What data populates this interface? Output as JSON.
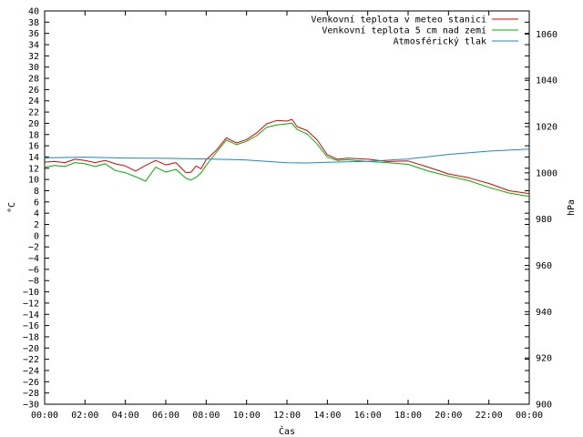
{
  "chart_data": {
    "type": "line",
    "xlabel": "Čas",
    "ylabel_left": "°C",
    "ylabel_right": "hPa",
    "x_ticks": [
      "00:00",
      "02:00",
      "04:00",
      "06:00",
      "08:00",
      "10:00",
      "12:00",
      "14:00",
      "16:00",
      "18:00",
      "20:00",
      "22:00",
      "00:00"
    ],
    "x_hours_range": [
      0,
      24
    ],
    "ylim_left": [
      -30,
      40
    ],
    "y_left_step": 2,
    "ylim_right": [
      900,
      1070
    ],
    "y_right_ticks": [
      900,
      920,
      940,
      960,
      980,
      1000,
      1020,
      1040,
      1060
    ],
    "grid": false,
    "legend_position": "top-right",
    "series": [
      {
        "name": "Venkovní teplota v meteo stanici",
        "color": "#e00000",
        "axis": "left",
        "x": [
          0,
          0.5,
          1,
          1.5,
          2,
          2.5,
          3,
          3.5,
          4,
          4.5,
          5,
          5.5,
          6,
          6.5,
          7,
          7.25,
          7.5,
          7.75,
          8,
          8.5,
          9,
          9.5,
          10,
          10.5,
          11,
          11.5,
          12,
          12.25,
          12.5,
          13,
          13.5,
          14,
          14.5,
          15,
          16,
          17,
          18,
          19,
          20,
          21,
          22,
          23,
          24
        ],
        "values": [
          13.1,
          13.2,
          13.0,
          13.6,
          13.4,
          13.0,
          13.4,
          12.8,
          12.4,
          11.5,
          12.5,
          13.4,
          12.6,
          13.0,
          11.2,
          11.3,
          12.4,
          11.9,
          13.5,
          15.2,
          17.4,
          16.5,
          17.1,
          18.3,
          19.9,
          20.5,
          20.4,
          20.7,
          19.4,
          18.7,
          17.0,
          14.4,
          13.6,
          13.8,
          13.6,
          13.2,
          13.3,
          12.2,
          11.0,
          10.3,
          9.3,
          8.0,
          7.5
        ]
      },
      {
        "name": "Venkovní teplota 5 cm nad zemí",
        "color": "#00b000",
        "axis": "left",
        "x": [
          0,
          0.5,
          1,
          1.5,
          2,
          2.5,
          3,
          3.5,
          4,
          4.5,
          5,
          5.5,
          6,
          6.5,
          7,
          7.25,
          7.5,
          7.75,
          8,
          8.5,
          9,
          9.5,
          10,
          10.5,
          11,
          11.5,
          12,
          12.25,
          12.5,
          13,
          13.5,
          14,
          14.5,
          15,
          16,
          17,
          18,
          19,
          20,
          21,
          22,
          23,
          24
        ],
        "values": [
          12.2,
          12.5,
          12.3,
          13.0,
          12.8,
          12.3,
          12.8,
          11.6,
          11.2,
          10.5,
          9.7,
          12.2,
          11.3,
          11.8,
          10.2,
          9.9,
          10.4,
          11.2,
          12.5,
          14.8,
          17.0,
          16.2,
          16.8,
          17.8,
          19.3,
          19.7,
          19.9,
          20.0,
          18.9,
          18.1,
          16.3,
          14.0,
          13.4,
          13.5,
          13.2,
          13.0,
          12.7,
          11.5,
          10.6,
          9.8,
          8.6,
          7.6,
          7.0
        ]
      },
      {
        "name": "Atmosférický tlak",
        "color": "#1a8ac6",
        "axis": "right",
        "x": [
          0,
          2,
          4,
          6,
          8,
          10,
          12,
          13,
          14,
          16,
          18,
          20,
          22,
          24
        ],
        "values": [
          1006.5,
          1006.8,
          1006.4,
          1006.3,
          1006.0,
          1005.6,
          1004.4,
          1004.3,
          1004.6,
          1005.0,
          1006.0,
          1008.0,
          1009.4,
          1010.3
        ]
      }
    ]
  }
}
